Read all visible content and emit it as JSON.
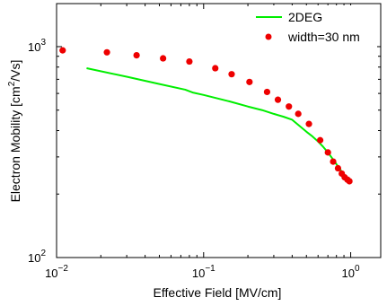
{
  "chart_data": {
    "type": "line",
    "xlabel": "Effective Field [MV/cm]",
    "ylabel": {
      "prefix": "Electron Mobility [cm",
      "superscript": "2",
      "suffix": "/Vs]"
    },
    "x_scale": "log",
    "y_scale": "log",
    "xlim": [
      0.01,
      1.6
    ],
    "ylim": [
      100,
      1600
    ],
    "x_ticks": [
      {
        "value": 0.01,
        "base": "10",
        "exp": "−2"
      },
      {
        "value": 0.1,
        "base": "10",
        "exp": "−1"
      },
      {
        "value": 1,
        "base": "10",
        "exp": "0"
      }
    ],
    "y_ticks": [
      {
        "value": 100,
        "base": "10",
        "exp": "2"
      },
      {
        "value": 1000,
        "base": "10",
        "exp": "3"
      }
    ],
    "grid": false,
    "legend_position": "top-right",
    "series": [
      {
        "name": "2DEG",
        "kind": "line",
        "color": "#00ee00",
        "x": [
          0.016,
          0.03,
          0.05,
          0.075,
          0.085,
          0.1,
          0.15,
          0.2,
          0.25,
          0.3,
          0.35,
          0.4,
          0.45,
          0.5,
          0.55,
          0.6,
          0.65,
          0.7,
          0.75,
          0.8,
          0.85,
          0.9,
          0.95,
          1.0
        ],
        "y": [
          790,
          720,
          665,
          625,
          605,
          590,
          550,
          520,
          500,
          480,
          465,
          450,
          420,
          395,
          375,
          355,
          335,
          315,
          295,
          277,
          261,
          247,
          235,
          225
        ]
      },
      {
        "name": "width=30 nm",
        "kind": "scatter",
        "color": "#ee0000",
        "x": [
          0.011,
          0.022,
          0.035,
          0.053,
          0.08,
          0.12,
          0.155,
          0.205,
          0.27,
          0.32,
          0.38,
          0.44,
          0.52,
          0.62,
          0.7,
          0.76,
          0.82,
          0.87,
          0.91,
          0.95,
          0.98
        ],
        "y": [
          960,
          940,
          910,
          880,
          850,
          790,
          740,
          680,
          610,
          560,
          520,
          480,
          430,
          360,
          315,
          285,
          265,
          250,
          240,
          234,
          230
        ]
      }
    ]
  }
}
